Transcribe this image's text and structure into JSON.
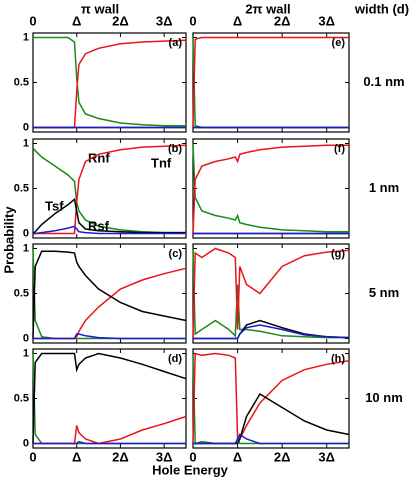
{
  "column_titles": [
    "π wall",
    "2π wall"
  ],
  "width_title": "width (d)",
  "row_labels": [
    "0.1 nm",
    "1 nm",
    "5 nm",
    "10 nm"
  ],
  "y_label": "Probability",
  "x_label": "Hole Energy",
  "chart_data": [
    {
      "type": "line",
      "panel_label": "(a)",
      "x": [
        0,
        0.05,
        0.2,
        0.5,
        0.8,
        0.95,
        1,
        1.05,
        1.2,
        1.5,
        2,
        2.5,
        3,
        3.5
      ],
      "xlim": [
        0,
        3.5
      ],
      "ylim": [
        -0.05,
        1.05
      ],
      "xticks": [
        0,
        {
          "value": 1,
          "label": "Δ"
        },
        {
          "value": 2,
          "label": "2Δ"
        },
        {
          "value": 3,
          "label": "3Δ"
        }
      ],
      "yticks": [
        0,
        0.5,
        1
      ],
      "series": [
        {
          "color": "#1a8a1a",
          "values": [
            1,
            1,
            1,
            1,
            1,
            0.95,
            0.55,
            0.28,
            0.15,
            0.1,
            0.05,
            0.03,
            0.02,
            0.02
          ]
        },
        {
          "color": "#e8141b",
          "values": [
            0,
            0,
            0,
            0,
            0,
            0,
            0.4,
            0.7,
            0.82,
            0.88,
            0.93,
            0.95,
            0.96,
            0.97
          ]
        },
        {
          "color": "#000000",
          "values": [
            0,
            0,
            0,
            0,
            0,
            0,
            0,
            0,
            0,
            0,
            0,
            0,
            0,
            0
          ]
        },
        {
          "color": "#1a1ad0",
          "values": [
            0,
            0,
            0,
            0,
            0,
            0,
            0,
            0,
            0,
            0,
            0,
            0,
            0,
            0
          ]
        }
      ]
    },
    {
      "type": "line",
      "panel_label": "(b)",
      "x": [
        0,
        0.05,
        0.2,
        0.5,
        0.8,
        0.95,
        1,
        1.05,
        1.2,
        1.5,
        2,
        2.5,
        3,
        3.5
      ],
      "xlim": [
        0,
        3.5
      ],
      "ylim": [
        -0.05,
        1.05
      ],
      "xticks": [
        0,
        {
          "value": 1,
          "label": "Δ"
        },
        {
          "value": 2,
          "label": "2Δ"
        },
        {
          "value": 3,
          "label": "3Δ"
        }
      ],
      "yticks": [
        0,
        0.5,
        1
      ],
      "series": [
        {
          "name": "Rnf",
          "color": "#1a8a1a",
          "values": [
            0.95,
            0.92,
            0.85,
            0.75,
            0.65,
            0.58,
            0.35,
            0.25,
            0.15,
            0.08,
            0.04,
            0.02,
            0.01,
            0.01
          ]
        },
        {
          "name": "Tnf",
          "color": "#e8141b",
          "values": [
            0,
            0,
            0,
            0,
            0,
            0,
            0.35,
            0.6,
            0.8,
            0.88,
            0.93,
            0.96,
            0.97,
            0.98
          ]
        },
        {
          "name": "Tsf",
          "color": "#000000",
          "values": [
            0,
            0.02,
            0.1,
            0.22,
            0.32,
            0.38,
            0.25,
            0.12,
            0.05,
            0.03,
            0.02,
            0.01,
            0.01,
            0.01
          ]
        },
        {
          "name": "Rsf",
          "color": "#1a1ad0",
          "values": [
            0,
            0,
            0.01,
            0.03,
            0.06,
            0.08,
            0.05,
            0.02,
            0.01,
            0,
            0,
            0,
            0,
            0
          ]
        }
      ]
    },
    {
      "type": "line",
      "panel_label": "(c)",
      "x": [
        0,
        0.05,
        0.2,
        0.5,
        0.8,
        0.95,
        1,
        1.05,
        1.2,
        1.5,
        2,
        2.5,
        3,
        3.5
      ],
      "xlim": [
        0,
        3.5
      ],
      "ylim": [
        -0.05,
        1.05
      ],
      "xticks": [
        0,
        {
          "value": 1,
          "label": "Δ"
        },
        {
          "value": 2,
          "label": "2Δ"
        },
        {
          "value": 3,
          "label": "3Δ"
        }
      ],
      "yticks": [
        0,
        0.5,
        1
      ],
      "series": [
        {
          "color": "#1a8a1a",
          "values": [
            1,
            0.2,
            0.02,
            0,
            0,
            0,
            0,
            0,
            0,
            0,
            0,
            0,
            0,
            0
          ]
        },
        {
          "color": "#e8141b",
          "values": [
            0,
            0,
            0,
            0,
            0,
            0,
            0.02,
            0.08,
            0.2,
            0.35,
            0.55,
            0.65,
            0.72,
            0.78
          ]
        },
        {
          "color": "#000000",
          "values": [
            0,
            0.8,
            0.97,
            0.97,
            0.96,
            0.95,
            0.85,
            0.8,
            0.7,
            0.55,
            0.4,
            0.3,
            0.25,
            0.2
          ]
        },
        {
          "color": "#1a1ad0",
          "values": [
            0,
            0,
            0,
            0,
            0,
            0,
            0.05,
            0.05,
            0.03,
            0.01,
            0,
            0,
            0,
            0
          ]
        }
      ]
    },
    {
      "type": "line",
      "panel_label": "(d)",
      "x": [
        0,
        0.05,
        0.2,
        0.5,
        0.8,
        0.95,
        1,
        1.05,
        1.2,
        1.5,
        2,
        2.5,
        3,
        3.5
      ],
      "xlim": [
        0,
        3.5
      ],
      "ylim": [
        -0.05,
        1.05
      ],
      "xticks": [
        0,
        {
          "value": 1,
          "label": "Δ"
        },
        {
          "value": 2,
          "label": "2Δ"
        },
        {
          "value": 3,
          "label": "3Δ"
        }
      ],
      "yticks": [
        0,
        0.5,
        1
      ],
      "series": [
        {
          "color": "#1a8a1a",
          "values": [
            1,
            0.1,
            0,
            0,
            0,
            0,
            0,
            0,
            0,
            0,
            0,
            0,
            0,
            0
          ]
        },
        {
          "color": "#e8141b",
          "values": [
            0,
            0,
            0,
            0,
            0,
            0,
            0.2,
            0.12,
            0.05,
            0,
            0.05,
            0.15,
            0.22,
            0.3
          ]
        },
        {
          "color": "#000000",
          "values": [
            0,
            0.9,
            1,
            1,
            1,
            1,
            0.82,
            0.88,
            0.95,
            1,
            0.95,
            0.88,
            0.8,
            0.72
          ]
        },
        {
          "color": "#1a1ad0",
          "values": [
            0,
            0,
            0,
            0,
            0,
            0,
            0,
            0.02,
            0,
            0,
            0,
            0,
            0,
            0
          ]
        }
      ]
    },
    {
      "type": "line",
      "panel_label": "(e)",
      "x": [
        0,
        0.05,
        0.2,
        0.5,
        0.8,
        0.95,
        1,
        1.05,
        1.2,
        1.5,
        2,
        2.5,
        3,
        3.5
      ],
      "xlim": [
        0,
        3.5
      ],
      "ylim": [
        -0.05,
        1.05
      ],
      "xticks": [
        0,
        {
          "value": 1,
          "label": "Δ"
        },
        {
          "value": 2,
          "label": "2Δ"
        },
        {
          "value": 3,
          "label": "3Δ"
        }
      ],
      "yticks": [
        0,
        0.5,
        1
      ],
      "series": [
        {
          "color": "#1a8a1a",
          "values": [
            1,
            0.02,
            0,
            0,
            0,
            0,
            0,
            0,
            0,
            0,
            0,
            0,
            0,
            0
          ]
        },
        {
          "color": "#e8141b",
          "values": [
            0,
            0.98,
            1,
            1,
            1,
            1,
            1,
            1,
            1,
            1,
            1,
            1,
            1,
            1
          ]
        },
        {
          "color": "#000000",
          "values": [
            0,
            0,
            0,
            0,
            0,
            0,
            0,
            0,
            0,
            0,
            0,
            0,
            0,
            0
          ]
        },
        {
          "color": "#1a1ad0",
          "values": [
            0,
            0,
            0,
            0,
            0,
            0,
            0,
            0,
            0,
            0,
            0,
            0,
            0,
            0
          ]
        }
      ]
    },
    {
      "type": "line",
      "panel_label": "(f)",
      "x": [
        0,
        0.05,
        0.2,
        0.5,
        0.8,
        0.95,
        1,
        1.05,
        1.2,
        1.5,
        2,
        2.5,
        3,
        3.5
      ],
      "xlim": [
        0,
        3.5
      ],
      "ylim": [
        -0.05,
        1.05
      ],
      "xticks": [
        0,
        {
          "value": 1,
          "label": "Δ"
        },
        {
          "value": 2,
          "label": "2Δ"
        },
        {
          "value": 3,
          "label": "3Δ"
        }
      ],
      "yticks": [
        0,
        0.5,
        1
      ],
      "series": [
        {
          "color": "#1a8a1a",
          "values": [
            1,
            0.4,
            0.25,
            0.2,
            0.17,
            0.15,
            0.2,
            0.12,
            0.1,
            0.07,
            0.04,
            0.03,
            0.02,
            0.02
          ]
        },
        {
          "color": "#e8141b",
          "values": [
            0,
            0.6,
            0.75,
            0.8,
            0.83,
            0.85,
            0.8,
            0.88,
            0.9,
            0.93,
            0.96,
            0.97,
            0.98,
            0.98
          ]
        },
        {
          "color": "#000000",
          "values": [
            0,
            0,
            0,
            0,
            0,
            0,
            0,
            0,
            0,
            0,
            0,
            0,
            0,
            0
          ]
        },
        {
          "color": "#1a1ad0",
          "values": [
            0,
            0,
            0,
            0,
            0,
            0,
            0,
            0,
            0,
            0,
            0,
            0,
            0,
            0
          ]
        }
      ]
    },
    {
      "type": "line",
      "panel_label": "(g)",
      "x": [
        0,
        0.05,
        0.2,
        0.5,
        0.8,
        0.95,
        1,
        1.05,
        1.2,
        1.5,
        2,
        2.5,
        3,
        3.5
      ],
      "xlim": [
        0,
        3.5
      ],
      "ylim": [
        -0.05,
        1.05
      ],
      "xticks": [
        0,
        {
          "value": 1,
          "label": "Δ"
        },
        {
          "value": 2,
          "label": "2Δ"
        },
        {
          "value": 3,
          "label": "3Δ"
        }
      ],
      "yticks": [
        0,
        0.5,
        1
      ],
      "series": [
        {
          "color": "#1a8a1a",
          "values": [
            1,
            0.05,
            0.1,
            0.2,
            0.1,
            0.03,
            0.6,
            0.1,
            0.1,
            0.08,
            0.03,
            0.02,
            0.01,
            0.01
          ]
        },
        {
          "color": "#e8141b",
          "values": [
            0,
            0.95,
            0.9,
            1,
            0.95,
            0.9,
            0.1,
            0.8,
            0.6,
            0.5,
            0.8,
            0.92,
            0.96,
            0.98
          ]
        },
        {
          "color": "#000000",
          "values": [
            0,
            0,
            0,
            0,
            0,
            0,
            0,
            0.05,
            0.15,
            0.2,
            0.12,
            0.05,
            0.02,
            0.01
          ]
        },
        {
          "color": "#1a1ad0",
          "values": [
            0,
            0,
            0,
            0,
            0,
            0,
            0,
            0.05,
            0.12,
            0.15,
            0.1,
            0.04,
            0.02,
            0.01
          ]
        }
      ]
    },
    {
      "type": "line",
      "panel_label": "(h)",
      "x": [
        0,
        0.05,
        0.2,
        0.5,
        0.8,
        0.95,
        1,
        1.05,
        1.2,
        1.5,
        2,
        2.5,
        3,
        3.5
      ],
      "xlim": [
        0,
        3.5
      ],
      "ylim": [
        -0.05,
        1.05
      ],
      "xticks": [
        0,
        {
          "value": 1,
          "label": "Δ"
        },
        {
          "value": 2,
          "label": "2Δ"
        },
        {
          "value": 3,
          "label": "3Δ"
        }
      ],
      "yticks": [
        0,
        0.5,
        1
      ],
      "series": [
        {
          "color": "#1a8a1a",
          "values": [
            1,
            0,
            0.02,
            0,
            0,
            0,
            0.05,
            0,
            0,
            0,
            0,
            0,
            0,
            0
          ]
        },
        {
          "color": "#e8141b",
          "values": [
            0,
            1,
            0.98,
            1,
            0.98,
            0.95,
            0.05,
            0.05,
            0.2,
            0.45,
            0.7,
            0.82,
            0.88,
            0.92
          ]
        },
        {
          "color": "#000000",
          "values": [
            0,
            0,
            0,
            0,
            0,
            0,
            0,
            0.05,
            0.3,
            0.55,
            0.4,
            0.25,
            0.15,
            0.1
          ]
        },
        {
          "color": "#1a1ad0",
          "values": [
            0,
            0,
            0,
            0,
            0,
            0,
            0.05,
            0.1,
            0.05,
            0,
            0,
            0,
            0,
            0
          ]
        }
      ]
    }
  ]
}
